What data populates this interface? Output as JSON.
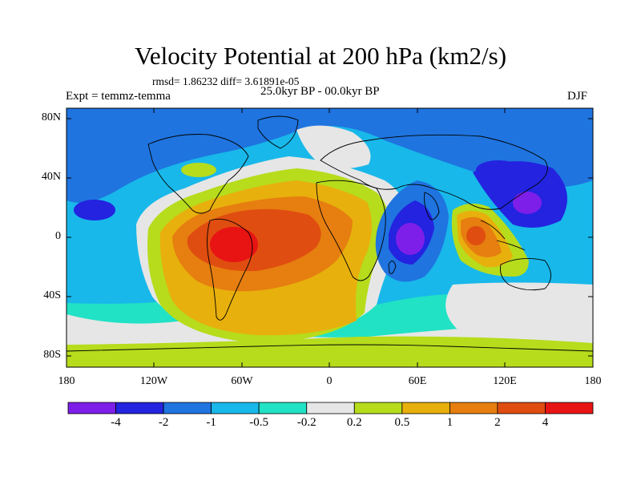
{
  "title": "Velocity Potential at 200 hPa (km2/s)",
  "stats": "rmsd= 1.86232 diff= 3.61891e-05",
  "expt": "Expt = temmz-temma",
  "period": "25.0kyr BP - 00.0kyr BP",
  "season": "DJF",
  "lat_labels": [
    "80N",
    "40N",
    "0",
    "40S",
    "80S"
  ],
  "lon_labels": [
    "180",
    "120W",
    "60W",
    "0",
    "60E",
    "120E",
    "180"
  ],
  "colorbar": {
    "labels": [
      "-4",
      "-2",
      "-1",
      "-0.5",
      "-0.2",
      "0.2",
      "0.5",
      "1",
      "2",
      "4"
    ],
    "colors": [
      "#7d1fe8",
      "#2323e0",
      "#1f74df",
      "#18b8ea",
      "#21e2c5",
      "#e6e6e6",
      "#b6dc1c",
      "#e8b00c",
      "#e67e10",
      "#e04d10",
      "#e81414"
    ]
  }
}
